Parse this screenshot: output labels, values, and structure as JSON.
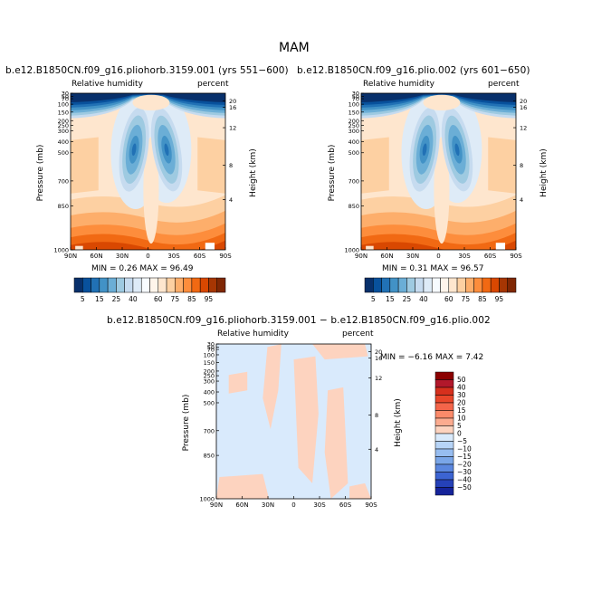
{
  "figure": {
    "title": "MAM",
    "panels": [
      {
        "title": "b.e12.B1850CN.f09_g16.pliohorb.3159.001 (yrs 551−600)",
        "left_label": "Relative humidity",
        "right_label": "percent",
        "minmax": "MIN =   0.26   MAX =   96.49"
      },
      {
        "title": "b.e12.B1850CN.f09_g16.plio.002 (yrs 601−650)",
        "left_label": "Relative humidity",
        "right_label": "percent",
        "minmax": "MIN =   0.31   MAX =   96.57"
      },
      {
        "title": "b.e12.B1850CN.f09_g16.pliohorb.3159.001  −  b.e12.B1850CN.f09_g16.plio.002",
        "left_label": "Relative humidity",
        "right_label": "percent",
        "minmax": "MIN = −6.16   MAX =   7.42"
      }
    ],
    "axes": {
      "ylabel": "Pressure (mb)",
      "y2label": "Height (km)",
      "xticks": [
        "90N",
        "60N",
        "30N",
        "0",
        "30S",
        "60S",
        "90S"
      ],
      "pressure_ticks": [
        "30",
        "50",
        "70",
        "100",
        "150",
        "200",
        "250",
        "300",
        "400",
        "500",
        "700",
        "850",
        "1000"
      ],
      "height_ticks": [
        "20",
        "16",
        "12",
        "8",
        "4"
      ]
    },
    "colorbar_top": {
      "labels": [
        "5",
        "15",
        "25",
        "40",
        "60",
        "75",
        "85",
        "95"
      ],
      "colors": [
        "#08306b",
        "#08519c",
        "#2171b5",
        "#4292c6",
        "#6baed6",
        "#9ecae1",
        "#c6dbef",
        "#deebf7",
        "#f7fbff",
        "#fff5eb",
        "#fee6ce",
        "#fdd0a2",
        "#fdae6b",
        "#fd8d3c",
        "#f16913",
        "#d94801",
        "#a63603",
        "#7f2704"
      ]
    },
    "colorbar_diff": {
      "labels": [
        "50",
        "40",
        "30",
        "20",
        "15",
        "10",
        "5",
        "0",
        "−5",
        "−10",
        "−15",
        "−20",
        "−30",
        "−40",
        "−50"
      ],
      "colors": [
        "#8b0000",
        "#b2182b",
        "#d6301d",
        "#e8462a",
        "#f4654a",
        "#fb8a6a",
        "#fcab8f",
        "#fdd3bf",
        "#d9eafc",
        "#b7d4f7",
        "#97bdf0",
        "#7aa6e8",
        "#5b87df",
        "#3c64d2",
        "#2541b8",
        "#15239a"
      ]
    }
  }
}
